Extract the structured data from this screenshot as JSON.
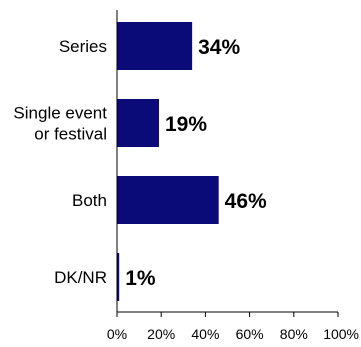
{
  "chart_data": {
    "type": "bar",
    "orientation": "horizontal",
    "categories": [
      [
        "Series"
      ],
      [
        "Single event",
        "or festival"
      ],
      [
        "Both"
      ],
      [
        "DK/NR"
      ]
    ],
    "values": [
      34,
      19,
      46,
      1
    ],
    "value_labels": [
      "34%",
      "19%",
      "46%",
      "1%"
    ],
    "xlim": [
      0,
      100
    ],
    "x_ticks": [
      0,
      20,
      40,
      60,
      80,
      100
    ],
    "x_tick_labels": [
      "0%",
      "20%",
      "40%",
      "60%",
      "80%",
      "100%"
    ],
    "grid": false,
    "bar_color": "#0a0a78"
  }
}
